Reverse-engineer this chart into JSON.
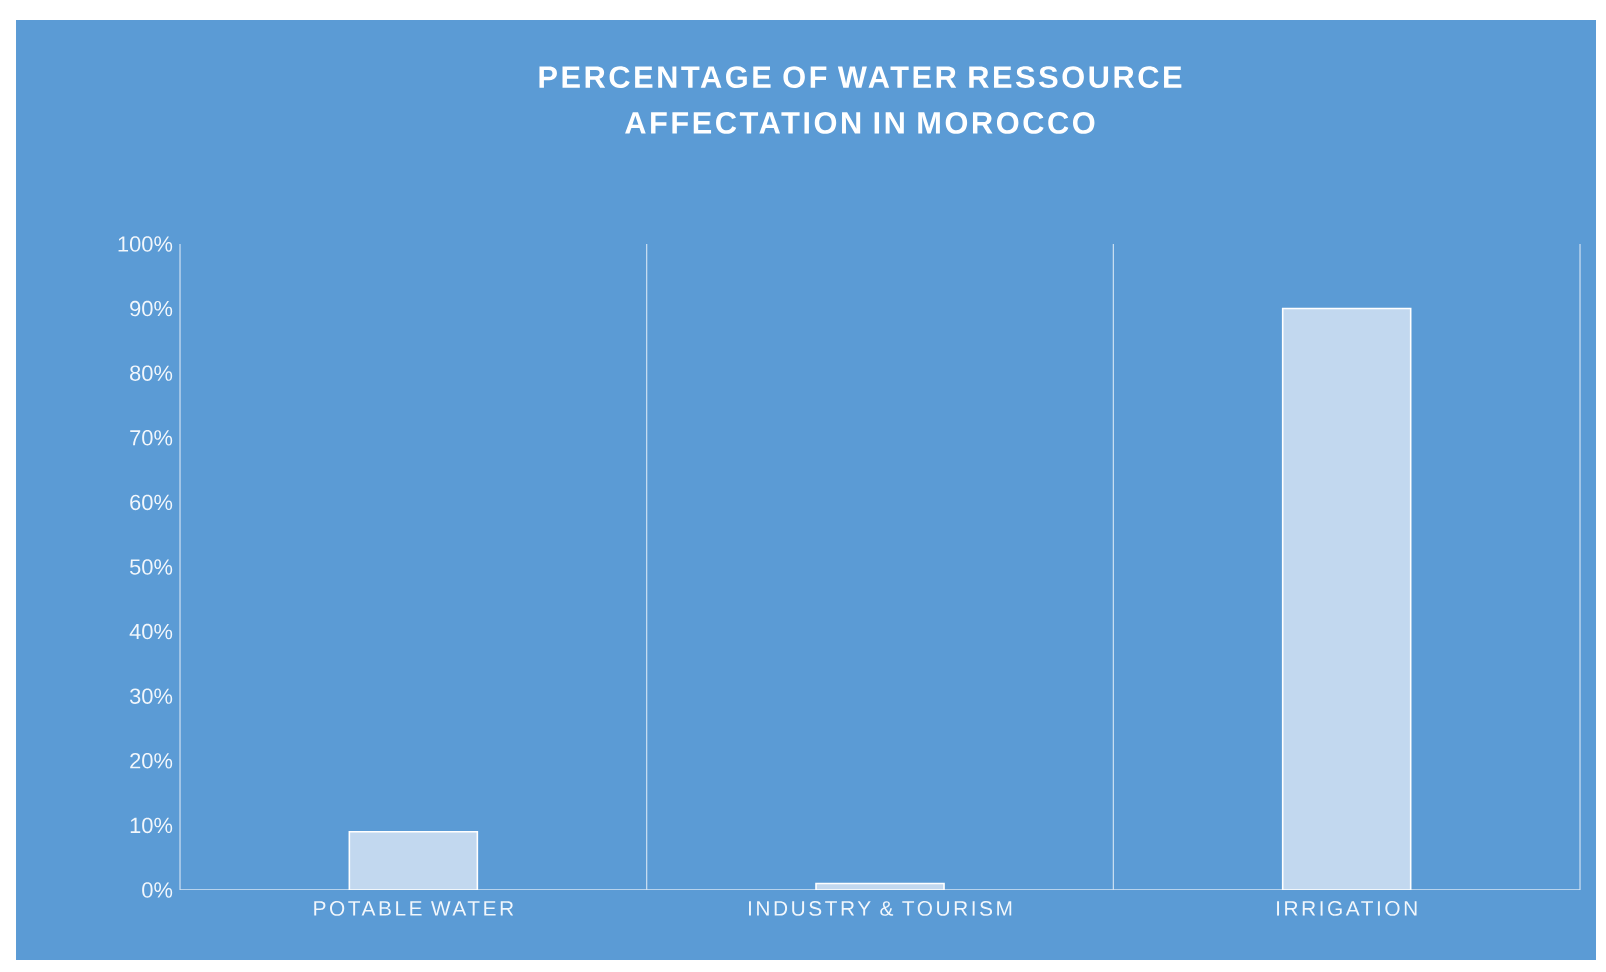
{
  "chart_data": {
    "type": "bar",
    "title": "PERCENTAGE OF WATER RESSOURCE AFFECTATION IN MOROCCO",
    "categories": [
      "POTABLE WATER",
      "INDUSTRY & TOURISM",
      "IRRIGATION"
    ],
    "values": [
      9,
      1,
      90
    ],
    "color": "#c2d8ef",
    "ylim": [
      0,
      100
    ],
    "yticks": [
      {
        "value": 0,
        "label": "0%"
      },
      {
        "value": 10,
        "label": "10%"
      },
      {
        "value": 20,
        "label": "20%"
      },
      {
        "value": 30,
        "label": "30%"
      },
      {
        "value": 40,
        "label": "40%"
      },
      {
        "value": 50,
        "label": "50%"
      },
      {
        "value": 60,
        "label": "60%"
      },
      {
        "value": 70,
        "label": "70%"
      },
      {
        "value": 80,
        "label": "80%"
      },
      {
        "value": 90,
        "label": "90%"
      },
      {
        "value": 100,
        "label": "100%"
      }
    ],
    "grid": "x"
  }
}
